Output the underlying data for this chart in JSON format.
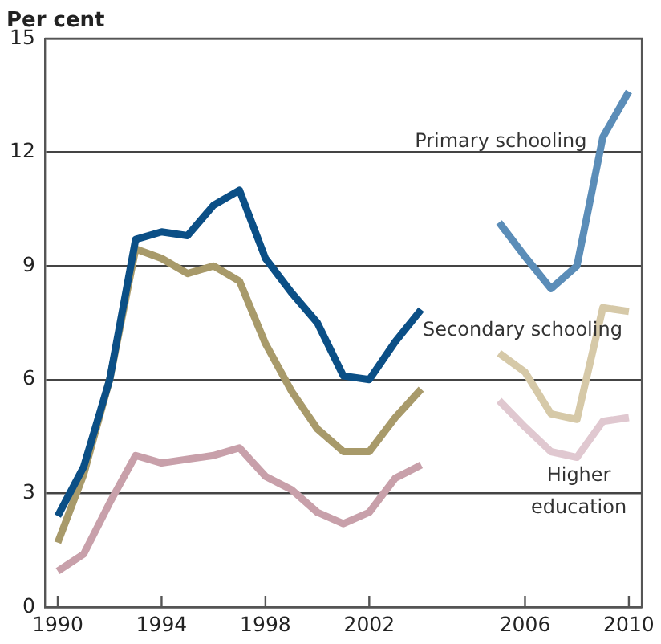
{
  "chart_data": {
    "type": "line",
    "ylabel": "Per cent",
    "categories": [
      "1990",
      null,
      null,
      null,
      "1994",
      null,
      null,
      null,
      "1998",
      null,
      null,
      null,
      "2002",
      null,
      null,
      null,
      null,
      null,
      "2006",
      null,
      null,
      null,
      "2010"
    ],
    "series": [
      {
        "color": "#0b4f86",
        "values": [
          2.4,
          3.7,
          6.0,
          9.7,
          9.9,
          9.8,
          10.6,
          11.0,
          9.2,
          8.3,
          7.5,
          6.1,
          6.0,
          7.0,
          7.85,
          null,
          null,
          null,
          null,
          null,
          null,
          null,
          null
        ]
      },
      {
        "color": "#a89a6a",
        "values": [
          1.7,
          3.5,
          6.0,
          9.45,
          9.2,
          8.8,
          9.0,
          8.6,
          6.95,
          5.7,
          4.7,
          4.1,
          4.1,
          5.0,
          5.75,
          null,
          null,
          null,
          null,
          null,
          null,
          null,
          null
        ]
      },
      {
        "color": "#c8a0aa",
        "values": [
          0.95,
          1.4,
          2.75,
          4.0,
          3.8,
          3.9,
          4.0,
          4.2,
          3.45,
          3.1,
          2.5,
          2.2,
          2.5,
          3.4,
          3.75,
          null,
          null,
          null,
          null,
          null,
          null,
          null,
          null
        ]
      },
      {
        "name": "Primary schooling",
        "color": "#5b8db8",
        "values": [
          null,
          null,
          null,
          null,
          null,
          null,
          null,
          null,
          null,
          null,
          null,
          null,
          null,
          null,
          null,
          null,
          null,
          10.15,
          9.25,
          8.4,
          9.0,
          12.4,
          13.6
        ]
      },
      {
        "name": "Secondary schooling",
        "color": "#d6c9a8",
        "values": [
          null,
          null,
          null,
          null,
          null,
          null,
          null,
          null,
          null,
          null,
          null,
          null,
          null,
          null,
          null,
          null,
          null,
          6.7,
          6.2,
          5.1,
          4.95,
          7.9,
          7.8
        ]
      },
      {
        "name": "Higher education",
        "color": "#e0c8d0",
        "values": [
          null,
          null,
          null,
          null,
          null,
          null,
          null,
          null,
          null,
          null,
          null,
          null,
          null,
          null,
          null,
          null,
          null,
          5.45,
          4.75,
          4.1,
          3.95,
          4.9,
          5.0
        ]
      }
    ],
    "ylim": [
      0,
      15
    ],
    "yticks": [
      0,
      3,
      6,
      9,
      12,
      15
    ],
    "grid": "y",
    "legend": false,
    "marker": "none",
    "line_style": "solid"
  }
}
